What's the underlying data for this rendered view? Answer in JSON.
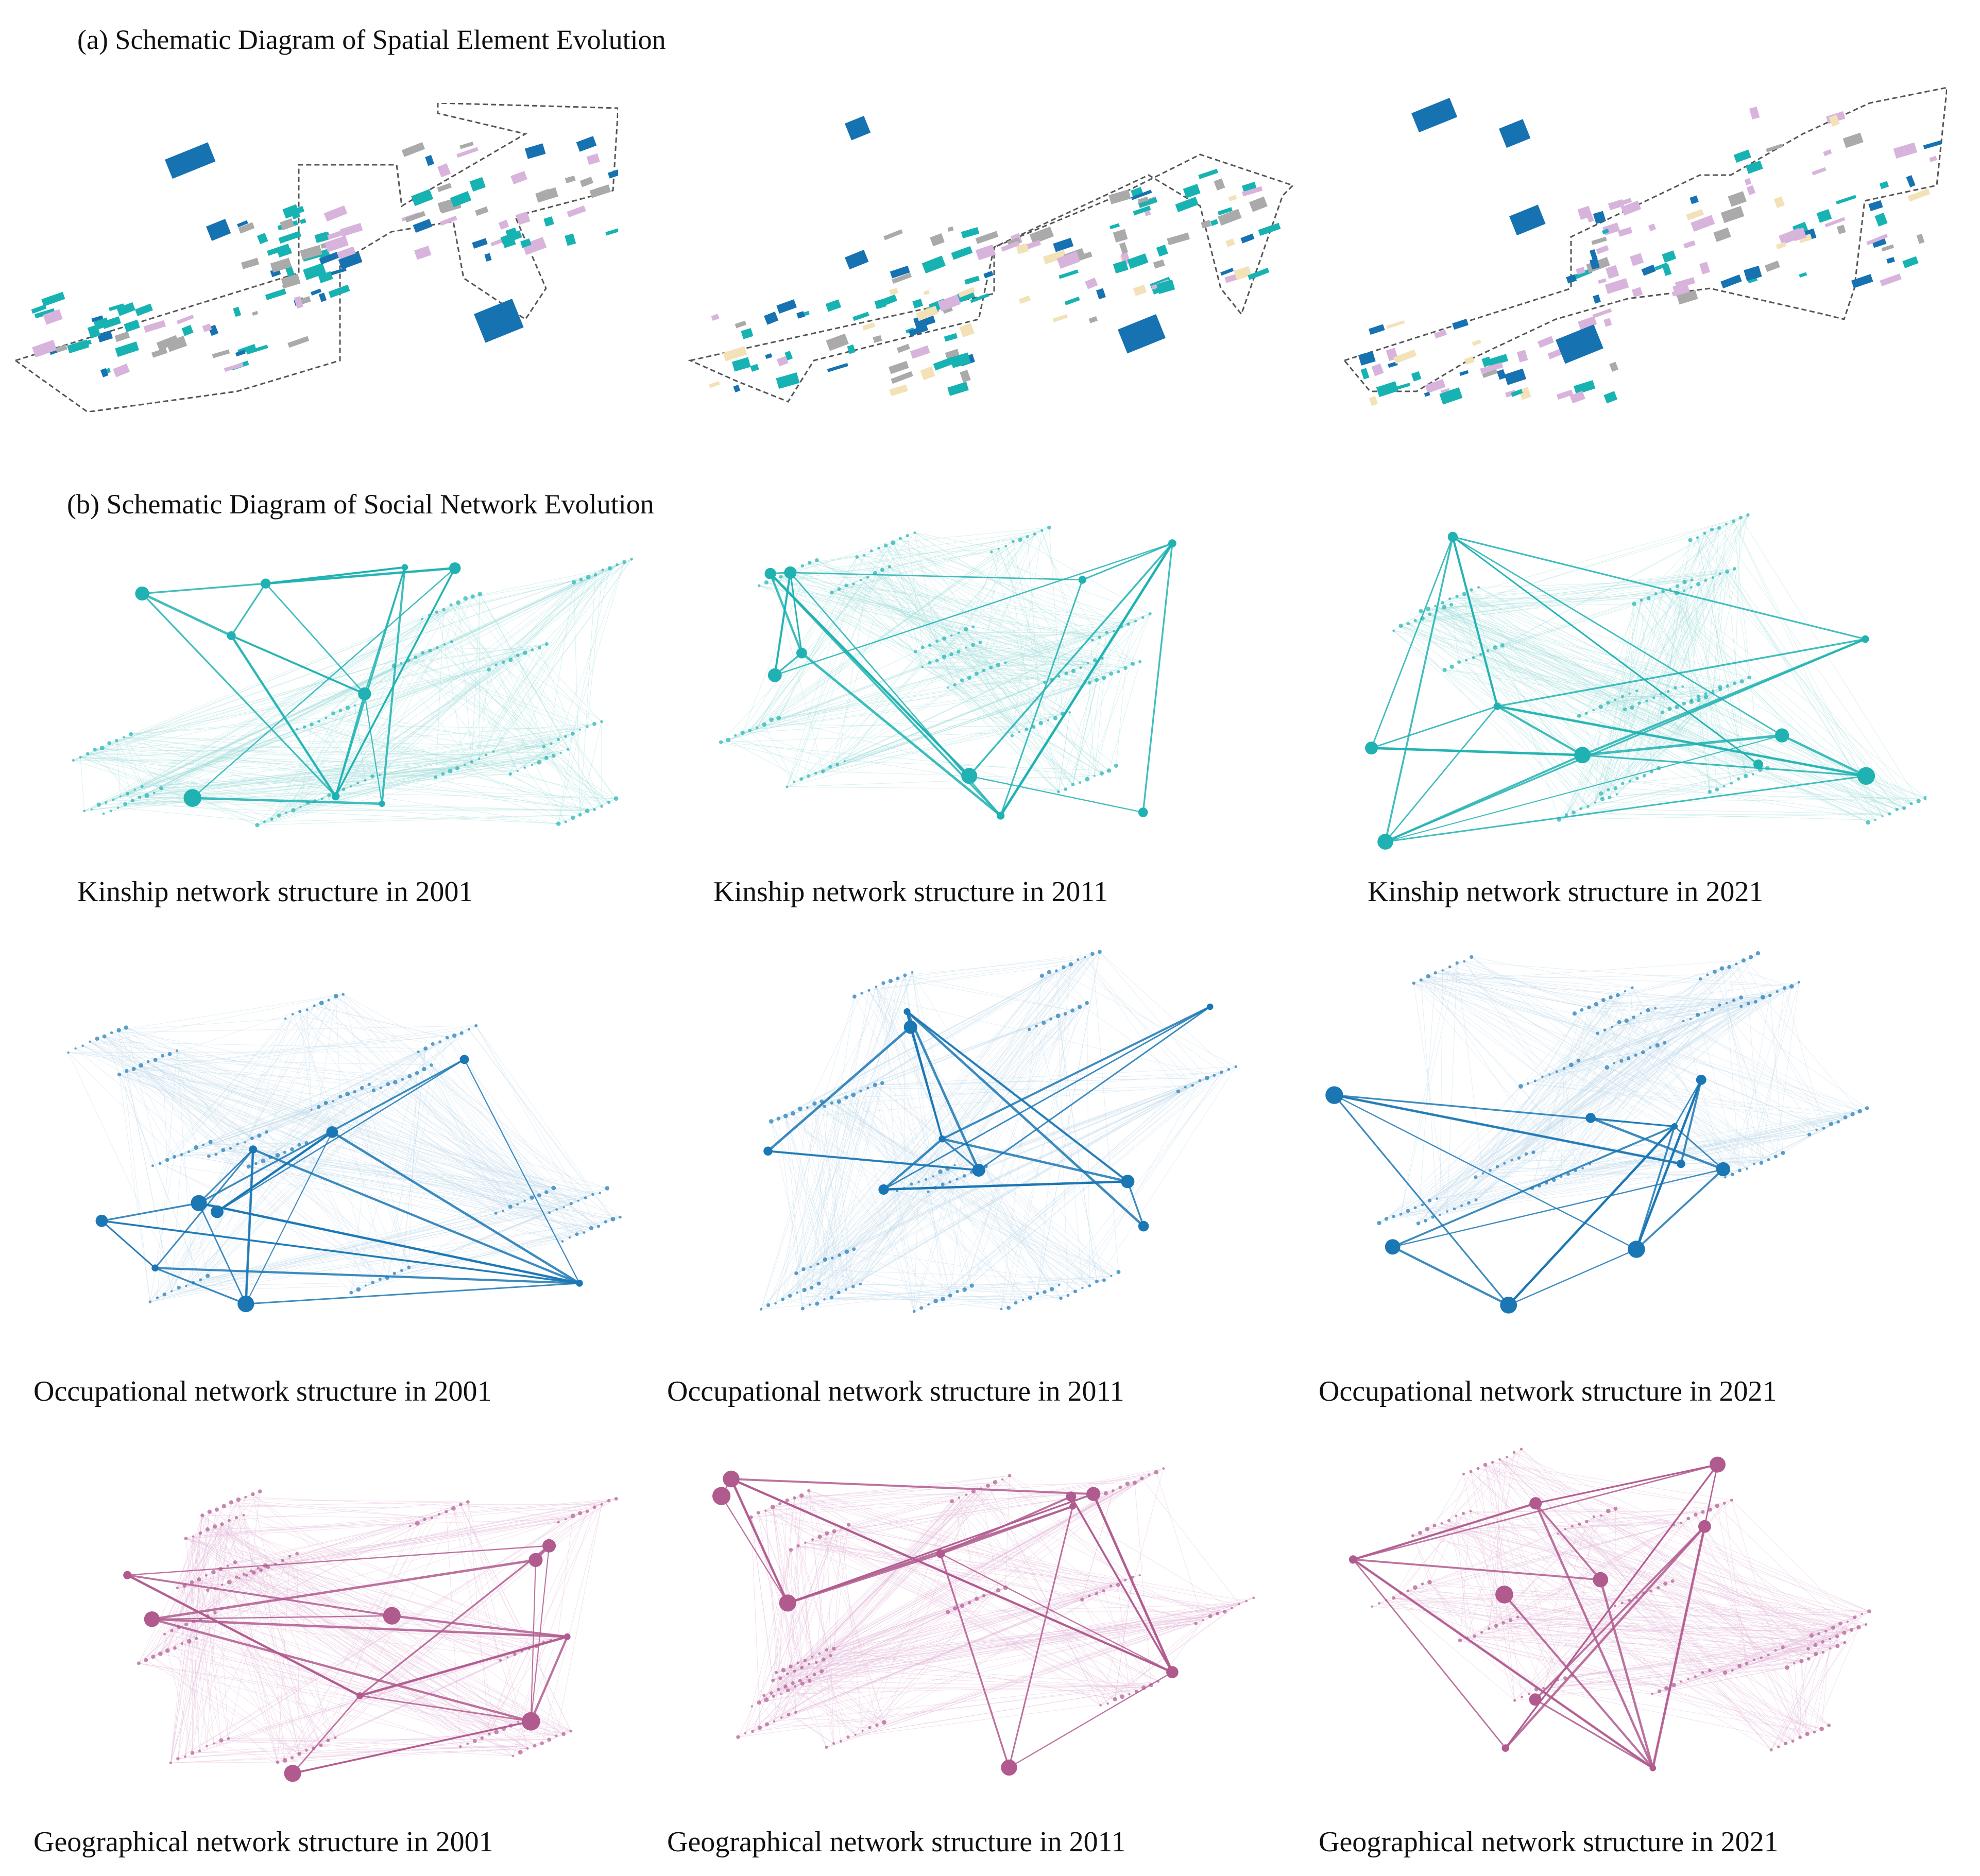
{
  "section_a": {
    "title": "(a) Schematic Diagram of Spatial Element Evolution"
  },
  "section_b": {
    "title": "(b) Schematic Diagram of Social Network Evolution"
  },
  "colors": {
    "kinship": "#20b2b2",
    "kinship_light": "#a8e0de",
    "occupational": "#1b77b4",
    "occupational_light": "#c4dbea",
    "geographical": "#b05a8e",
    "geographical_light": "#e4bddc",
    "building_teal": "#17b3b3",
    "building_blue": "#1672b0",
    "building_pink": "#d8b4dc",
    "building_gray": "#aaaaaa",
    "building_cream": "#f3e2b8",
    "boundary": "#555555"
  },
  "spatial_maps": [
    {
      "name": "spatial-2001"
    },
    {
      "name": "spatial-2011"
    },
    {
      "name": "spatial-2021"
    }
  ],
  "networks": {
    "kinship": [
      {
        "caption": "Kinship network structure in 2001"
      },
      {
        "caption": "Kinship network structure in 2011"
      },
      {
        "caption": "Kinship network structure in 2021"
      }
    ],
    "occupational": [
      {
        "caption": "Occupational network structure in 2001"
      },
      {
        "caption": "Occupational network structure in 2011"
      },
      {
        "caption": "Occupational network structure in 2021"
      }
    ],
    "geographical": [
      {
        "caption": "Geographical network structure in 2001"
      },
      {
        "caption": "Geographical network structure in 2011"
      },
      {
        "caption": "Geographical network structure in 2021"
      }
    ]
  }
}
